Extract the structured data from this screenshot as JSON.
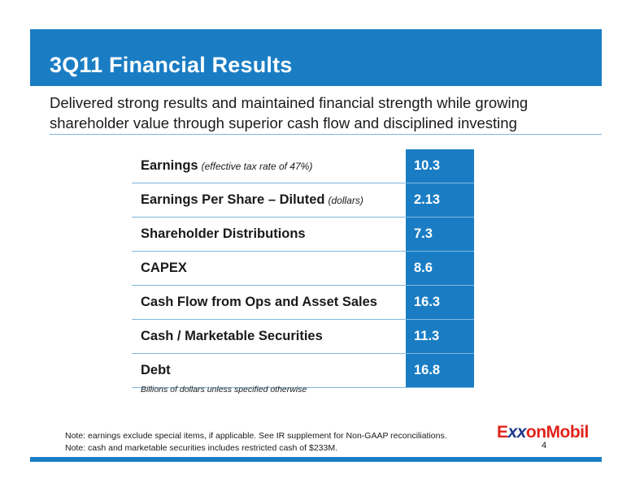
{
  "header": {
    "title": "3Q11 Financial Results"
  },
  "subtitle": {
    "line1": "Delivered strong results and maintained financial strength while growing",
    "line2": "shareholder value through superior cash flow and disciplined investing"
  },
  "table": {
    "rows": [
      {
        "label": "Earnings",
        "note": "(effective tax rate of 47%)",
        "value": "10.3"
      },
      {
        "label": "Earnings Per Share – Diluted",
        "note": "(dollars)",
        "value": "2.13"
      },
      {
        "label": "Shareholder Distributions",
        "note": "",
        "value": "7.3"
      },
      {
        "label": "CAPEX",
        "note": "",
        "value": "8.6"
      },
      {
        "label": "Cash Flow from Ops and Asset Sales",
        "note": "",
        "value": "16.3"
      },
      {
        "label": "Cash / Marketable Securities",
        "note": "",
        "value": "11.3"
      },
      {
        "label": "Debt",
        "note": "",
        "value": "16.8"
      }
    ],
    "footnote": "Billions of dollars unless specified otherwise"
  },
  "notes": {
    "line1": "Note: earnings exclude special items, if applicable. See IR supplement for Non-GAAP reconciliations.",
    "line2": "Note: cash and marketable securities includes restricted cash of $233M."
  },
  "logo": {
    "part1": "E",
    "part2": "xx",
    "part3": "onMobil"
  },
  "page_number": "4",
  "colors": {
    "accent": "#1a7dc4",
    "rule": "#7fb8e0",
    "brand_red": "#e2231a"
  }
}
